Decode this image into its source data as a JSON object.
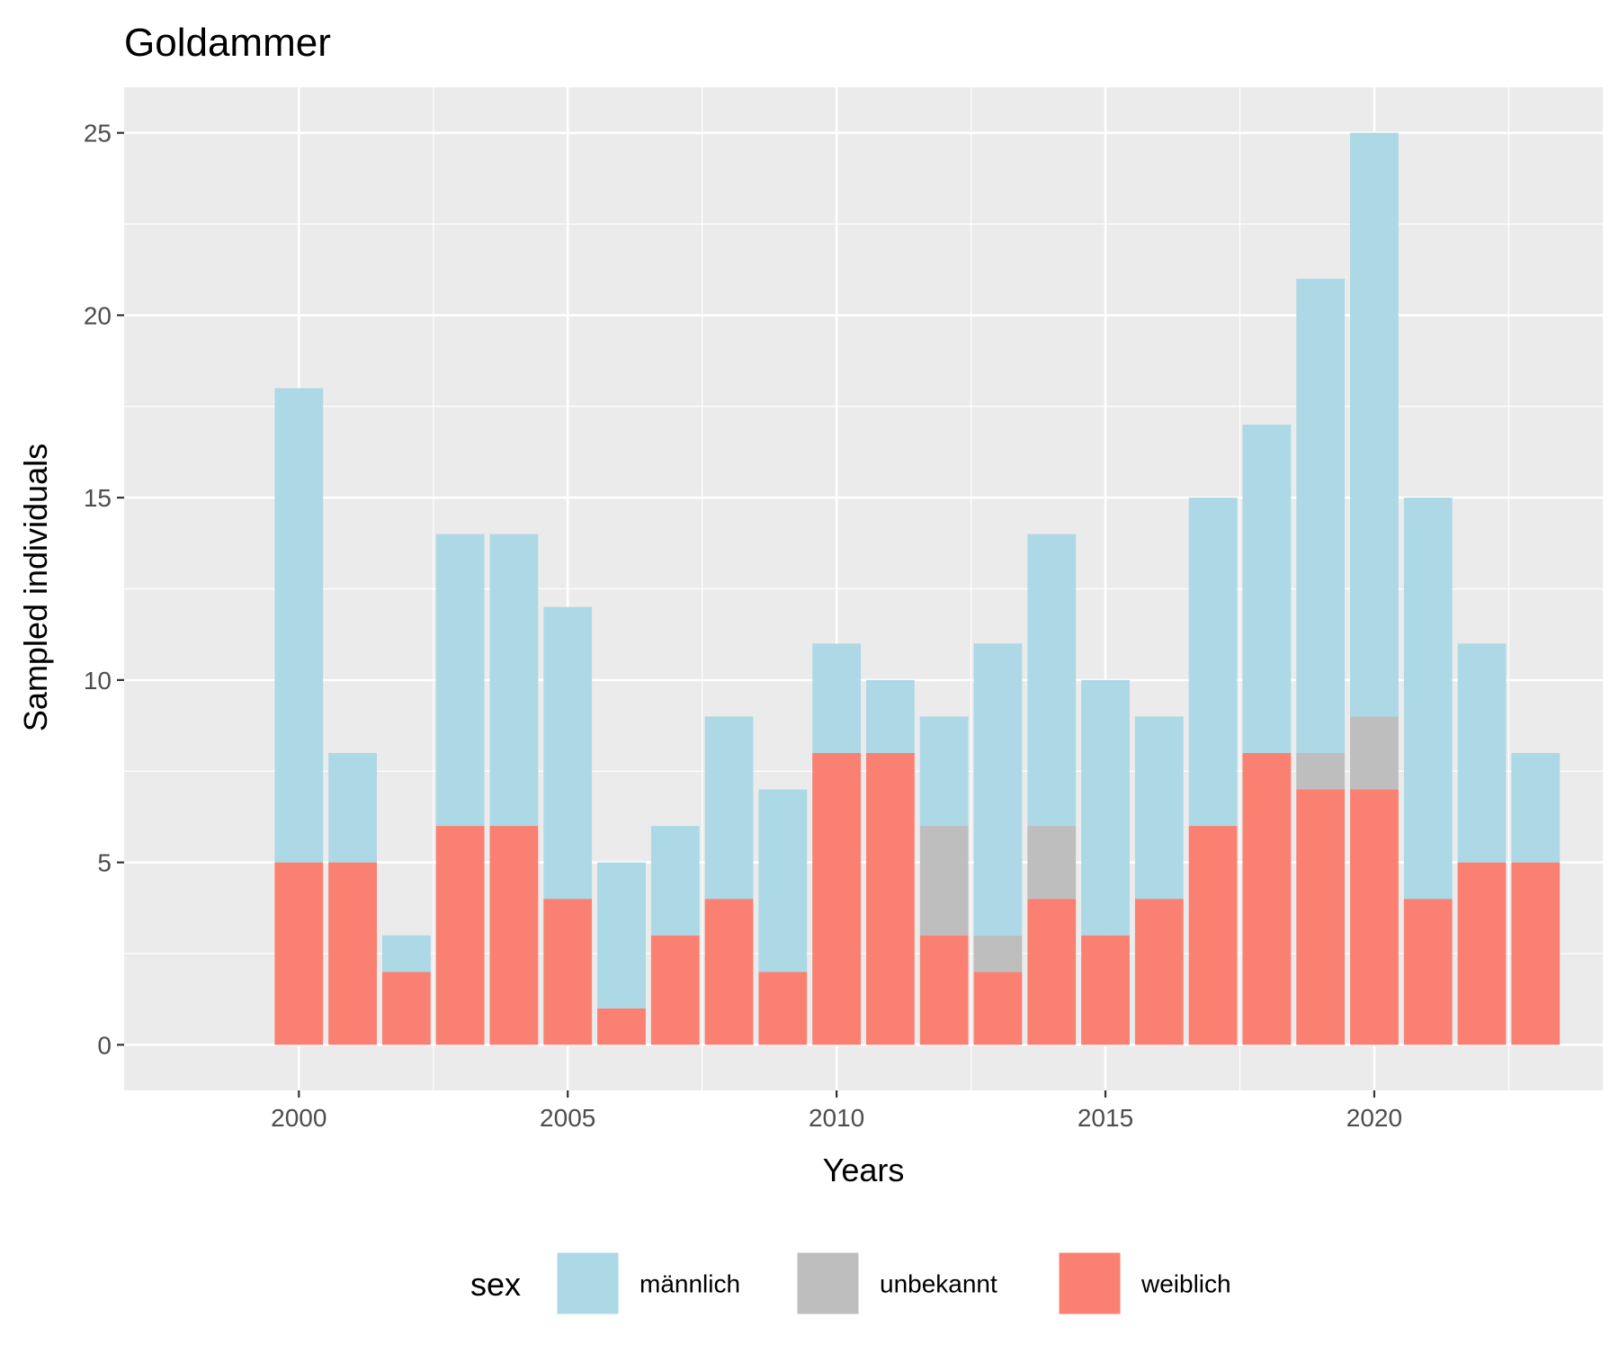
{
  "chart_data": {
    "type": "bar",
    "stacked": true,
    "title": "Goldammer",
    "xlabel": "Years",
    "ylabel": "Sampled individuals",
    "x": [
      2000,
      2001,
      2002,
      2003,
      2004,
      2005,
      2006,
      2007,
      2008,
      2009,
      2010,
      2011,
      2012,
      2013,
      2014,
      2015,
      2016,
      2017,
      2018,
      2019,
      2020,
      2021,
      2022,
      2023
    ],
    "series": [
      {
        "name": "weiblich",
        "color": "#FA8072",
        "values": [
          5,
          5,
          2,
          6,
          6,
          4,
          1,
          3,
          4,
          2,
          8,
          8,
          3,
          2,
          4,
          3,
          4,
          6,
          8,
          7,
          7,
          4,
          5,
          5
        ]
      },
      {
        "name": "unbekannt",
        "color": "#BEBEBE",
        "values": [
          0,
          0,
          0,
          0,
          0,
          0,
          0,
          0,
          0,
          0,
          0,
          0,
          3,
          1,
          2,
          0,
          0,
          0,
          0,
          1,
          2,
          0,
          0,
          0
        ]
      },
      {
        "name": "männlich",
        "color": "#ADD8E6",
        "values": [
          13,
          3,
          1,
          8,
          8,
          8,
          4,
          3,
          5,
          5,
          3,
          2,
          3,
          8,
          8,
          7,
          5,
          9,
          9,
          13,
          16,
          11,
          6,
          3
        ]
      }
    ],
    "xlim": [
      1996.75,
      2024.25
    ],
    "ylim": [
      -1.25,
      26.25
    ],
    "x_ticks": [
      2000,
      2005,
      2010,
      2015,
      2020
    ],
    "x_tick_labels": [
      "2000",
      "2005",
      "2010",
      "2015",
      "2020"
    ],
    "y_ticks": [
      0,
      5,
      10,
      15,
      20,
      25
    ],
    "y_tick_labels": [
      "0",
      "5",
      "10",
      "15",
      "20",
      "25"
    ],
    "grid": true,
    "legend": {
      "position": "bottom",
      "title": "sex",
      "entries": [
        {
          "label": "männlich",
          "color": "#ADD8E6"
        },
        {
          "label": "unbekannt",
          "color": "#BEBEBE"
        },
        {
          "label": "weiblich",
          "color": "#FA8072"
        }
      ]
    },
    "panel_background": "#EBEBEB",
    "grid_color": "#FFFFFF"
  }
}
